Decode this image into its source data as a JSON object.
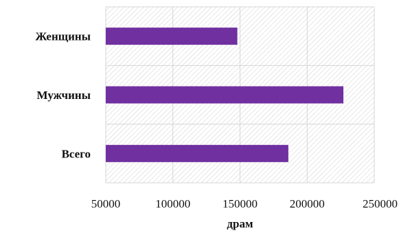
{
  "chart_data": {
    "type": "bar",
    "orientation": "horizontal",
    "categories": [
      "Женщины",
      "Мужчины",
      "Всего"
    ],
    "values": [
      148000,
      227000,
      186000
    ],
    "xlabel": "драм",
    "ylabel": "",
    "xlim": [
      50000,
      250000
    ],
    "x_ticks": [
      "50000",
      "100000",
      "150000",
      "200000",
      "250000"
    ],
    "grid": true,
    "legend": "none",
    "bar_color": "#7030a0",
    "background": "diagonal-hatch"
  }
}
